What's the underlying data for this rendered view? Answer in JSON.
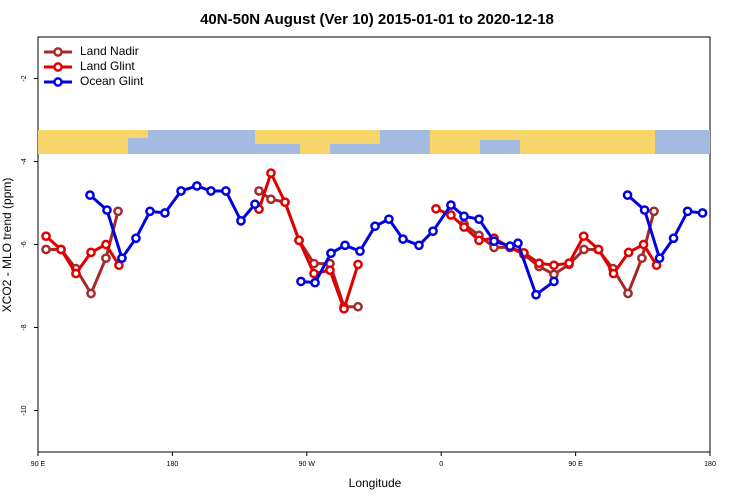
{
  "chart_data": {
    "type": "line",
    "title": "40N-50N August (Ver 10)   2015-01-01 to 2020-12-18",
    "x_label": "Longitude",
    "y_label": "XCO2 - MLO trend (ppm)",
    "xlim": [
      90,
      540
    ],
    "xticks": [
      {
        "value": 90,
        "label": "90 E"
      },
      180,
      {
        "value": 270,
        "label": "90 W"
      },
      {
        "value": 360,
        "label": "0"
      },
      {
        "value": 450,
        "label": "90 E"
      },
      {
        "value": 540,
        "label": "180"
      }
    ],
    "ylim": [
      -11,
      -1
    ],
    "yticks": [
      -2,
      -4,
      -6,
      -8,
      -10
    ],
    "legend": "top-left",
    "series": [
      {
        "name": "Land Nadir",
        "color": "#a52a2a",
        "x": [
          95.4,
          105.4,
          115.4,
          125.5,
          135.5,
          143.6,
          null,
          238,
          246,
          255.4,
          264.8,
          274.8,
          285.5,
          294.9,
          304.3,
          null,
          375.3,
          385.3,
          395.4,
          406.1,
          415.4,
          425.5,
          435.5,
          445.6,
          455.6,
          465,
          475,
          485.1,
          494.4,
          502.5
        ],
        "values": [
          -6.12,
          -6.12,
          -6.58,
          -7.18,
          -6.33,
          -5.2,
          null,
          -4.71,
          -4.91,
          -4.98,
          -5.9,
          -6.46,
          -6.46,
          -7.5,
          -7.5,
          null,
          -5.51,
          -5.78,
          -6.07,
          -6.07,
          -6.24,
          -6.53,
          -6.72,
          -6.48,
          -6.12,
          -6.12,
          -6.58,
          -7.18,
          -6.33,
          -5.2
        ]
      },
      {
        "name": "Land Glint",
        "color": "#e00000",
        "x": [
          95.4,
          105.4,
          115.4,
          125.5,
          135.5,
          144.2,
          null,
          238,
          246,
          255.4,
          264.8,
          274.8,
          285.5,
          294.9,
          304.3,
          null,
          356.5,
          366.5,
          375.3,
          385.3,
          395.4,
          406.1,
          415.4,
          425.5,
          435.5,
          445.6,
          455.4,
          465.4,
          475.4,
          485.5,
          495.5,
          504.2
        ],
        "values": [
          -5.8,
          -6.12,
          -6.7,
          -6.19,
          -6.0,
          -6.5,
          null,
          -5.15,
          -4.28,
          -4.98,
          -5.9,
          -6.7,
          -6.62,
          -7.55,
          -6.48,
          null,
          -5.14,
          -5.29,
          -5.58,
          -5.9,
          -5.85,
          -6.07,
          -6.2,
          -6.45,
          -6.5,
          -6.45,
          -5.8,
          -6.12,
          -6.7,
          -6.19,
          -6.0,
          -6.5
        ]
      },
      {
        "name": "Ocean Glint",
        "color": "#0000e0",
        "x": [
          124.8,
          136.2,
          146.2,
          155.6,
          165,
          175,
          185.8,
          196.4,
          205.8,
          215.8,
          225.9,
          235.3,
          null,
          266.1,
          275.5,
          286.2,
          295.6,
          305.6,
          315.7,
          325,
          334.4,
          345.1,
          354.5,
          366.5,
          375.3,
          385.3,
          395.4,
          406.1,
          411.4,
          423.5,
          435.5,
          null,
          484.8,
          496.2,
          506.2,
          515.6,
          525,
          535
        ],
        "values": [
          -4.81,
          -5.17,
          -6.33,
          -5.85,
          -5.2,
          -5.24,
          -4.71,
          -4.59,
          -4.71,
          -4.71,
          -5.43,
          -5.03,
          null,
          -6.89,
          -6.92,
          -6.21,
          -6.02,
          -6.16,
          -5.56,
          -5.39,
          -5.87,
          -6.02,
          -5.68,
          -5.05,
          -5.32,
          -5.39,
          -5.92,
          -6.04,
          -5.97,
          -7.21,
          -6.89,
          null,
          -4.81,
          -5.17,
          -6.33,
          -5.85,
          -5.2,
          -5.24
        ]
      }
    ]
  }
}
